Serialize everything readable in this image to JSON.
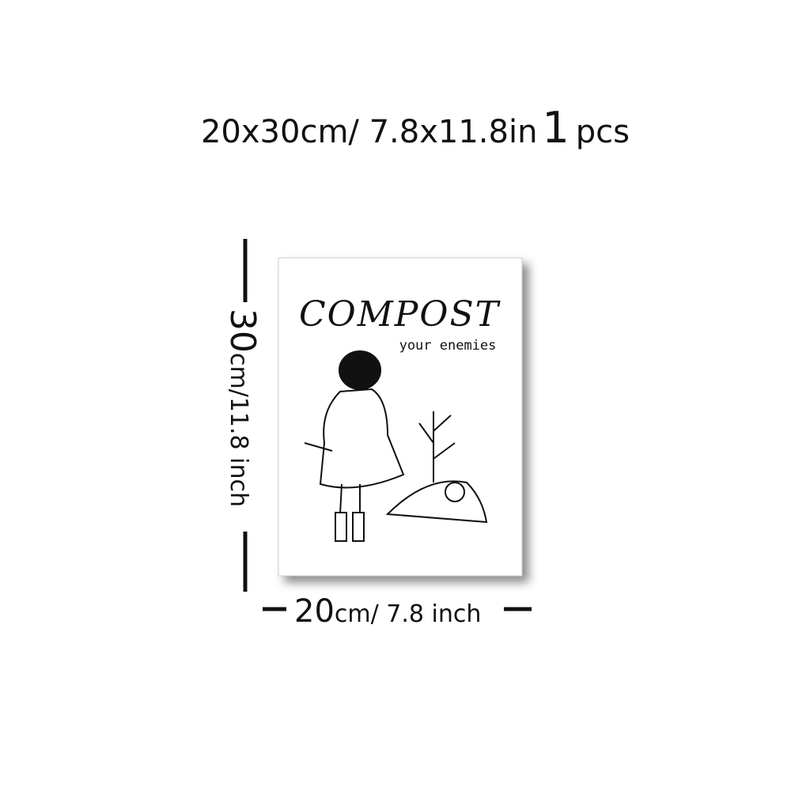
{
  "header": {
    "size": "20x30cm/ 7.8x11.8in",
    "count": "1",
    "unit": "pcs"
  },
  "poster": {
    "title": "COMPOST",
    "subtitle": "your enemies"
  },
  "height_label": {
    "number": "30",
    "text": "cm/11.8 inch"
  },
  "width_label": {
    "number": "20",
    "text": "cm/ 7.8 inch"
  }
}
